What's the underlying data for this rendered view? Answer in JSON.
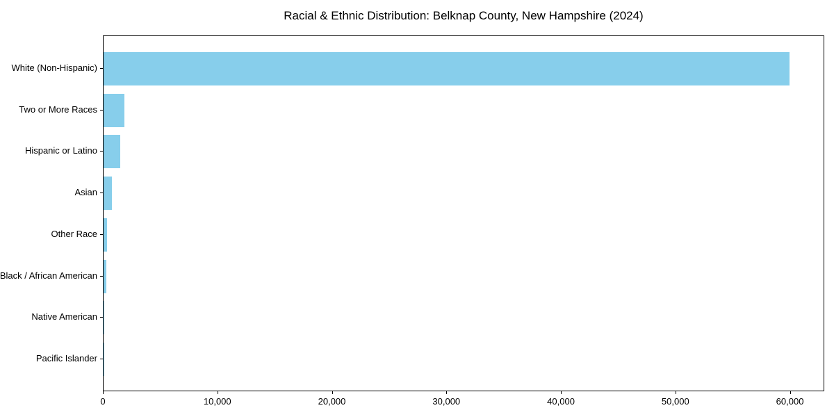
{
  "chart_data": {
    "type": "bar",
    "orientation": "horizontal",
    "title": "Racial & Ethnic Distribution: Belknap County, New Hampshire (2024)",
    "categories": [
      "White (Non-Hispanic)",
      "Two or More Races",
      "Hispanic or Latino",
      "Asian",
      "Other Race",
      "Black / African American",
      "Native American",
      "Pacific Islander"
    ],
    "values": [
      59900,
      1800,
      1450,
      700,
      330,
      270,
      30,
      10
    ],
    "xlabel": "",
    "ylabel": "",
    "xlim": [
      0,
      63000
    ],
    "x_ticks": [
      0,
      10000,
      20000,
      30000,
      40000,
      50000,
      60000
    ],
    "x_tick_labels": [
      "0",
      "10,000",
      "20,000",
      "30,000",
      "40,000",
      "50,000",
      "60,000"
    ],
    "bar_color": "#87CEEB",
    "frame_color": "#000000",
    "background_color": "#ffffff",
    "grid": false,
    "legend": null
  }
}
